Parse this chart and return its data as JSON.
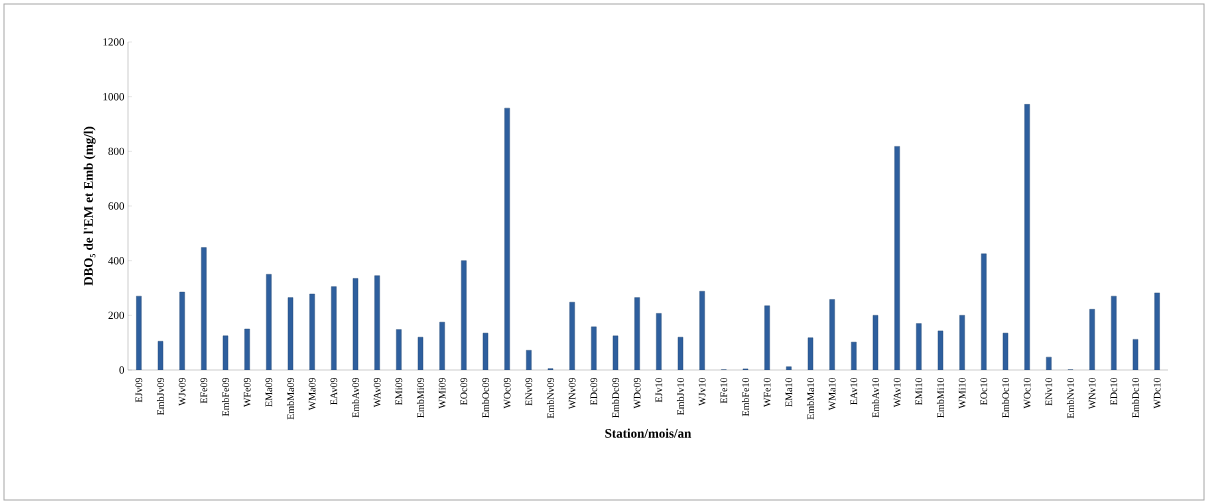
{
  "chart_data": {
    "type": "bar",
    "xlabel": "Station/mois/an",
    "ylabel": "DBO₅ de l'EM et Emb (mg/l)",
    "categories": [
      "EJv09",
      "EmbJv09",
      "WJv09",
      "EFe09",
      "EmbFe09",
      "WFe09",
      "EMa09",
      "EmbMa09",
      "WMa09",
      "EAv09",
      "EmbAv09",
      "WAv09",
      "EMi09",
      "EmbMi09",
      "WMi09",
      "EOc09",
      "EmbOc09",
      "WOc09",
      "ENv09",
      "EmbNv09",
      "WNv09",
      "EDc09",
      "EmbDc09",
      "WDc09",
      "EJv10",
      "EmbJv10",
      "WJv10",
      "EFe10",
      "EmbFe10",
      "WFe10",
      "EMa10",
      "EmbMa10",
      "WMa10",
      "EAv10",
      "EmbAv10",
      "WAv10",
      "EMi10",
      "EmbMi10",
      "WMi10",
      "EOc10",
      "EmbOc10",
      "WOc10",
      "ENv10",
      "EmbNv10",
      "WNv10",
      "EDc10",
      "EmbDc10",
      "WDc10"
    ],
    "values": [
      270,
      105,
      285,
      448,
      125,
      150,
      350,
      265,
      278,
      305,
      335,
      345,
      148,
      120,
      175,
      400,
      135,
      958,
      72,
      5,
      248,
      158,
      125,
      265,
      207,
      120,
      288,
      1,
      4,
      235,
      12,
      118,
      258,
      102,
      200,
      818,
      170,
      143,
      200,
      425,
      135,
      972,
      47,
      1,
      222,
      270,
      112,
      282
    ],
    "color": "#2e5f9e",
    "ylim": [
      0,
      1200
    ],
    "yticks": [
      0,
      200,
      400,
      600,
      800,
      1000,
      1200
    ],
    "grid": false
  }
}
